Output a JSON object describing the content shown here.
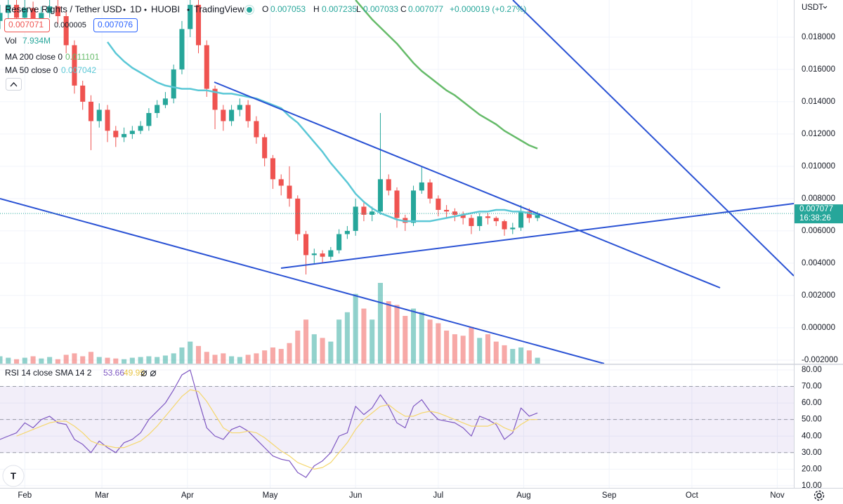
{
  "header": {
    "symbol": "Reserve Rights / Tether USD",
    "interval": "1D",
    "exchange": "HUOBI",
    "source": "TradingView",
    "ohlc": [
      {
        "key": "O",
        "value": "0.007053"
      },
      {
        "key": "H",
        "value": "0.007235"
      },
      {
        "key": "L",
        "value": "0.007033"
      },
      {
        "key": "C",
        "value": "0.007077"
      }
    ],
    "change": "+0.000019 (+0.27%)",
    "bid": "0.007071",
    "spread": "0.000005",
    "ask": "0.007076",
    "volume_label": "Vol",
    "volume_value": "7.934M"
  },
  "chart_data": {
    "type": "candlestick",
    "y_axis_label": "USDT",
    "up_color": "#26a69a",
    "down_color": "#ef5350",
    "grid": true,
    "xlim": [
      0,
      96
    ],
    "xticks": [
      {
        "value": 3,
        "label": "Feb"
      },
      {
        "value": 12.33,
        "label": "Mar"
      },
      {
        "value": 22.67,
        "label": "Apr"
      },
      {
        "value": 32.67,
        "label": "May"
      },
      {
        "value": 43,
        "label": "Jun"
      },
      {
        "value": 53,
        "label": "Jul"
      },
      {
        "value": 63.33,
        "label": "Aug"
      },
      {
        "value": 73.67,
        "label": "Sep"
      },
      {
        "value": 83.67,
        "label": "Oct"
      },
      {
        "value": 94,
        "label": "Nov"
      }
    ],
    "ylim": [
      -0.00222,
      0.0203
    ],
    "yticks": [
      {
        "value": 0.018,
        "label": "0.018000"
      },
      {
        "value": 0.016,
        "label": "0.016000"
      },
      {
        "value": 0.014,
        "label": "0.014000"
      },
      {
        "value": 0.012,
        "label": "0.012000"
      },
      {
        "value": 0.01,
        "label": "0.010000"
      },
      {
        "value": 0.008,
        "label": "0.008000"
      },
      {
        "value": 0.006,
        "label": "0.006000"
      },
      {
        "value": 0.004,
        "label": "0.004000"
      },
      {
        "value": 0.002,
        "label": "0.002000"
      },
      {
        "value": 0,
        "label": "0.000000"
      },
      {
        "value": -0.002,
        "label": "-0.002000"
      }
    ],
    "last_price": 0.007077,
    "countdown": "16:38:26",
    "open": [
      0.019,
      0.0195,
      0.02,
      0.0192,
      0.0198,
      0.0188,
      0.0195,
      0.0199,
      0.0193,
      0.0175,
      0.015,
      0.014,
      0.0128,
      0.0135,
      0.0122,
      0.0118,
      0.012,
      0.0122,
      0.0125,
      0.0133,
      0.0138,
      0.0142,
      0.016,
      0.0185,
      0.02,
      0.0175,
      0.0148,
      0.0135,
      0.0128,
      0.0135,
      0.0138,
      0.0128,
      0.0118,
      0.0105,
      0.0092,
      0.0088,
      0.008,
      0.0058,
      0.0045,
      0.0046,
      0.0044,
      0.0048,
      0.0058,
      0.006,
      0.0075,
      0.007,
      0.0072,
      0.0092,
      0.0085,
      0.0068,
      0.0065,
      0.0085,
      0.009,
      0.008,
      0.0073,
      0.0072,
      0.007,
      0.0068,
      0.0063,
      0.0069,
      0.0068,
      0.0066,
      0.0061,
      0.0062,
      0.0072,
      0.0068
    ],
    "high": [
      0.02,
      0.0203,
      0.0205,
      0.0203,
      0.0202,
      0.0199,
      0.0203,
      0.0204,
      0.0196,
      0.0178,
      0.0153,
      0.0144,
      0.0139,
      0.0138,
      0.0125,
      0.0124,
      0.0125,
      0.0128,
      0.0136,
      0.0141,
      0.0146,
      0.0163,
      0.019,
      0.021,
      0.0205,
      0.0178,
      0.015,
      0.0138,
      0.0138,
      0.0142,
      0.0141,
      0.0131,
      0.012,
      0.0107,
      0.0095,
      0.01,
      0.0082,
      0.006,
      0.0049,
      0.0048,
      0.005,
      0.0061,
      0.0063,
      0.008,
      0.0078,
      0.0075,
      0.0133,
      0.0095,
      0.0087,
      0.007,
      0.0088,
      0.01,
      0.0092,
      0.0082,
      0.0076,
      0.0074,
      0.0072,
      0.007,
      0.0071,
      0.0071,
      0.0069,
      0.0067,
      0.0065,
      0.0076,
      0.0074,
      0.0072
    ],
    "low": [
      0.0185,
      0.019,
      0.0188,
      0.0188,
      0.0183,
      0.0185,
      0.0192,
      0.0188,
      0.017,
      0.0145,
      0.0135,
      0.011,
      0.0124,
      0.0115,
      0.0112,
      0.0115,
      0.0117,
      0.012,
      0.0122,
      0.013,
      0.0136,
      0.0139,
      0.0157,
      0.018,
      0.017,
      0.0143,
      0.0123,
      0.0122,
      0.0125,
      0.0131,
      0.0124,
      0.0114,
      0.01,
      0.0086,
      0.0082,
      0.0075,
      0.0054,
      0.0033,
      0.004,
      0.004,
      0.0042,
      0.0046,
      0.0055,
      0.0057,
      0.0066,
      0.0066,
      0.007,
      0.0082,
      0.0062,
      0.006,
      0.0063,
      0.0083,
      0.0077,
      0.0069,
      0.0068,
      0.0066,
      0.0064,
      0.0058,
      0.006,
      0.0064,
      0.0063,
      0.0057,
      0.0058,
      0.006,
      0.0065,
      0.0066
    ],
    "close": [
      0.0195,
      0.02,
      0.0192,
      0.0198,
      0.0188,
      0.0195,
      0.0199,
      0.0193,
      0.0175,
      0.015,
      0.014,
      0.0128,
      0.0135,
      0.0122,
      0.0118,
      0.012,
      0.0122,
      0.0125,
      0.0133,
      0.0138,
      0.0142,
      0.016,
      0.0185,
      0.02,
      0.0175,
      0.0148,
      0.0135,
      0.0128,
      0.0135,
      0.0138,
      0.0128,
      0.0118,
      0.0105,
      0.0092,
      0.0088,
      0.008,
      0.0058,
      0.0045,
      0.0046,
      0.0044,
      0.0048,
      0.0058,
      0.006,
      0.0075,
      0.007,
      0.0072,
      0.0092,
      0.0085,
      0.0068,
      0.0065,
      0.0085,
      0.009,
      0.008,
      0.0073,
      0.0072,
      0.007,
      0.0068,
      0.0063,
      0.0069,
      0.0068,
      0.0066,
      0.0061,
      0.0062,
      0.0072,
      0.0068,
      0.007
    ],
    "volume": [
      10,
      8,
      6,
      8,
      10,
      7,
      9,
      6,
      12,
      14,
      10,
      16,
      9,
      8,
      7,
      6,
      8,
      9,
      10,
      9,
      11,
      14,
      22,
      30,
      24,
      16,
      12,
      14,
      10,
      9,
      12,
      14,
      18,
      22,
      20,
      28,
      45,
      60,
      40,
      35,
      30,
      60,
      70,
      95,
      75,
      60,
      110,
      85,
      80,
      65,
      75,
      70,
      60,
      55,
      45,
      40,
      38,
      50,
      35,
      40,
      30,
      25,
      20,
      22,
      18,
      8
    ],
    "series": [
      {
        "name": "MA 200 close 0",
        "color": "#66bb6a",
        "last": "0.011101",
        "values": [
          null,
          null,
          null,
          null,
          null,
          null,
          null,
          null,
          null,
          null,
          null,
          null,
          null,
          null,
          null,
          null,
          null,
          null,
          null,
          null,
          null,
          null,
          null,
          null,
          null,
          null,
          null,
          null,
          null,
          null,
          null,
          null,
          null,
          null,
          null,
          null,
          null,
          null,
          null,
          null,
          null,
          null,
          null,
          0.0203,
          0.0197,
          0.0191,
          0.0186,
          0.0181,
          0.0176,
          0.017,
          0.0164,
          0.0159,
          0.0155,
          0.0151,
          0.0147,
          0.0144,
          0.014,
          0.0136,
          0.0132,
          0.0129,
          0.0126,
          0.0122,
          0.0119,
          0.0116,
          0.0113,
          0.0111
        ]
      },
      {
        "name": "MA 50 close 0",
        "color": "#5bc8d6",
        "last": "0.007042",
        "values": [
          null,
          null,
          null,
          null,
          null,
          null,
          null,
          null,
          null,
          null,
          null,
          null,
          null,
          0.0177,
          0.017,
          0.0165,
          0.0161,
          0.0158,
          0.0155,
          0.0152,
          0.015,
          0.0149,
          0.0148,
          0.0148,
          0.0147,
          0.0147,
          0.0146,
          0.0145,
          0.0145,
          0.0144,
          0.0143,
          0.0142,
          0.014,
          0.0138,
          0.0136,
          0.0131,
          0.0127,
          0.0121,
          0.0115,
          0.0109,
          0.0102,
          0.0096,
          0.009,
          0.0083,
          0.0078,
          0.0074,
          0.0071,
          0.0069,
          0.0067,
          0.0066,
          0.0066,
          0.0066,
          0.0066,
          0.0067,
          0.0068,
          0.0069,
          0.007,
          0.0071,
          0.0072,
          0.0072,
          0.0073,
          0.0073,
          0.0072,
          0.0072,
          0.0071,
          0.007
        ]
      }
    ],
    "rsi": {
      "name": "RSI 14 close SMA 14 2",
      "ylim": [
        8.7,
        82.97
      ],
      "yticks": [
        {
          "value": 80,
          "label": "80.00"
        },
        {
          "value": 70,
          "label": "70.00"
        },
        {
          "value": 60,
          "label": "60.00"
        },
        {
          "value": 50,
          "label": "50.00"
        },
        {
          "value": 40,
          "label": "40.00"
        },
        {
          "value": 30,
          "label": "30.00"
        },
        {
          "value": 20,
          "label": "20.00"
        },
        {
          "value": 10,
          "label": "10.00"
        }
      ],
      "band": [
        30,
        70
      ],
      "midline": 50,
      "band_color": "#7e57c2",
      "series": [
        {
          "name": "RSI",
          "color": "#7e57c2",
          "last": "53.66",
          "values": [
            38,
            40,
            42,
            48,
            45,
            50,
            52,
            48,
            47,
            38,
            35,
            30,
            37,
            33,
            30,
            36,
            38,
            42,
            50,
            55,
            60,
            68,
            77,
            80,
            62,
            45,
            40,
            38,
            44,
            46,
            43,
            38,
            33,
            28,
            26,
            25,
            18,
            15,
            22,
            25,
            30,
            40,
            42,
            58,
            53,
            57,
            65,
            58,
            48,
            45,
            58,
            62,
            55,
            50,
            49,
            48,
            45,
            40,
            52,
            50,
            47,
            38,
            42,
            57,
            52,
            54
          ]
        },
        {
          "name": "SMA",
          "color": "#f5d76e",
          "last": "49.95",
          "values": [
            null,
            null,
            40,
            42,
            44,
            46,
            48,
            49,
            49,
            46,
            42,
            37,
            35,
            34,
            33,
            33,
            35,
            37,
            41,
            46,
            52,
            58,
            64,
            68,
            67,
            61,
            53,
            45,
            42,
            42,
            43,
            42,
            39,
            35,
            31,
            28,
            24,
            22,
            20,
            21,
            24,
            30,
            36,
            44,
            50,
            54,
            58,
            59,
            55,
            52,
            52,
            54,
            55,
            54,
            52,
            50,
            48,
            46,
            46,
            46,
            48,
            45,
            43,
            47,
            50,
            50
          ]
        }
      ]
    }
  }
}
